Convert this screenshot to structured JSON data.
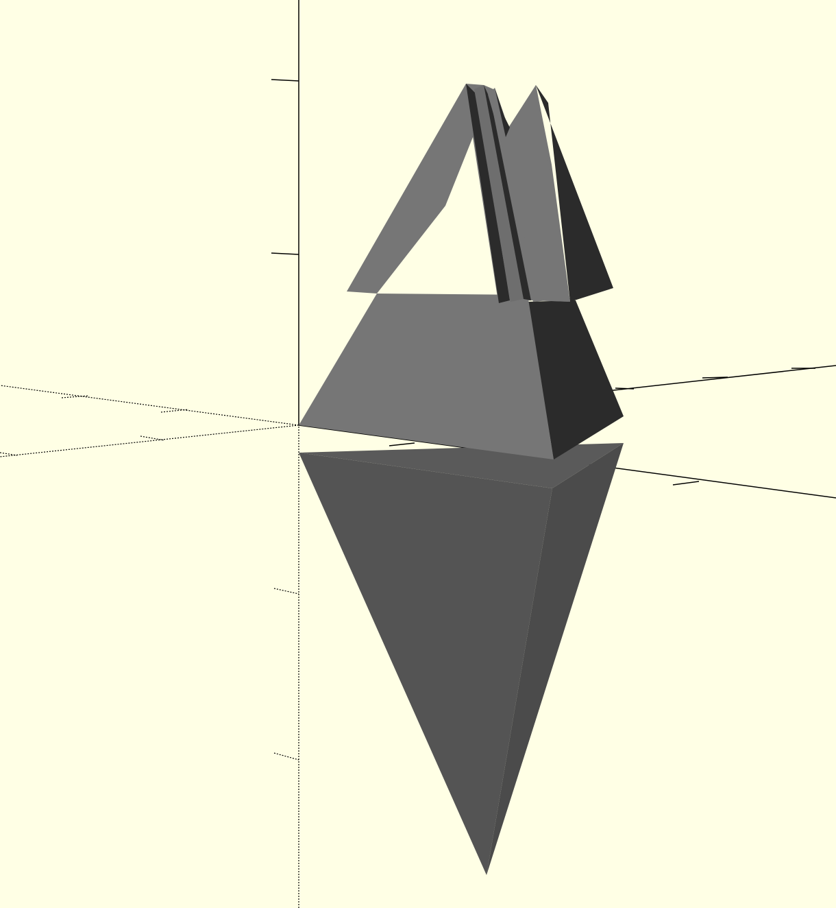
{
  "viewport": {
    "background_color": "#ffffe5",
    "axis_color": "#000000",
    "colors": {
      "face_light": "#767676",
      "face_mid": "#6e6e6e",
      "face_dark": "#2b2b2b",
      "face_bottom": "#545454",
      "face_bottom_side": "#4b4b4b",
      "face_bottom_top": "#5a5a5a"
    },
    "objects": [
      {
        "name": "tree-model",
        "shape": "stacked-pyramids-with-ridges"
      },
      {
        "name": "bottom-cone",
        "shape": "inverted-pyramid"
      }
    ],
    "axes": [
      "x-axis",
      "y-axis",
      "z-axis"
    ]
  }
}
